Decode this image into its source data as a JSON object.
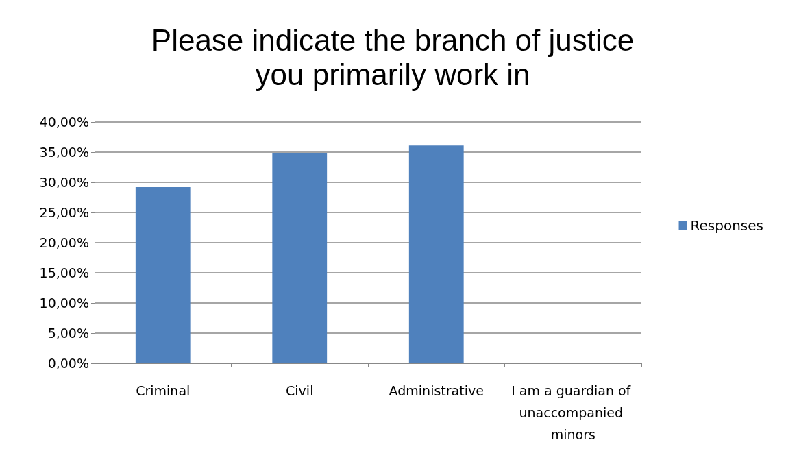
{
  "chart_data": {
    "type": "bar",
    "title": "Please indicate the branch of justice\nyou primarily work in",
    "categories": [
      "Criminal",
      "Civil",
      "Administrative",
      "I am a guardian of unaccompanied minors"
    ],
    "series": [
      {
        "name": "Responses",
        "color": "#4f81bd",
        "values": [
          29.2,
          34.9,
          36.1,
          0
        ]
      }
    ],
    "ylim": [
      0,
      40
    ],
    "yticks": [
      {
        "value": 0,
        "label": "0,00%"
      },
      {
        "value": 5,
        "label": "5,00%"
      },
      {
        "value": 10,
        "label": "10,00%"
      },
      {
        "value": 15,
        "label": "15,00%"
      },
      {
        "value": 20,
        "label": "20,00%"
      },
      {
        "value": 25,
        "label": "25,00%"
      },
      {
        "value": 30,
        "label": "30,00%"
      },
      {
        "value": 35,
        "label": "35,00%"
      },
      {
        "value": 40,
        "label": "40,00%"
      }
    ],
    "grid": "y",
    "legend": "right"
  }
}
